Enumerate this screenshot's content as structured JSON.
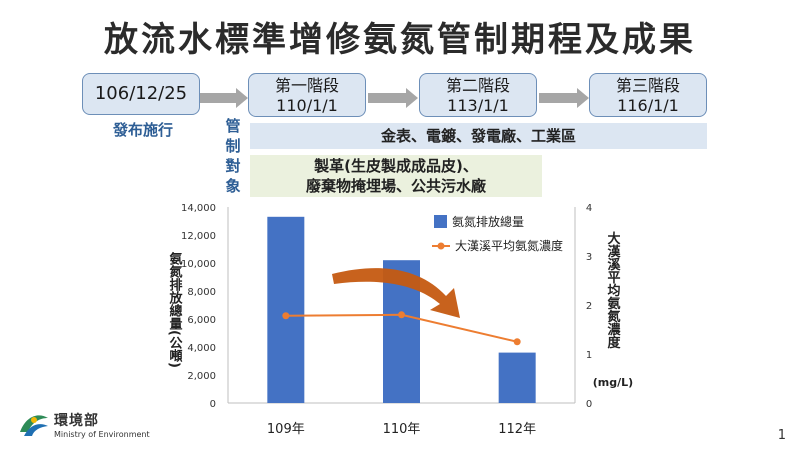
{
  "slide": {
    "title": "放流水標準增修氨氮管制期程及成果",
    "page_number": "1"
  },
  "timeline": {
    "start": {
      "date": "106/12/25",
      "caption": "發布施行"
    },
    "phases": [
      {
        "label": "第一階段",
        "date": "110/1/1"
      },
      {
        "label": "第二階段",
        "date": "113/1/1"
      },
      {
        "label": "第三階段",
        "date": "116/1/1"
      }
    ]
  },
  "control": {
    "label_chars": [
      "管",
      "制",
      "對",
      "象"
    ],
    "targets_blue": "金表、電鍍、發電廠、工業區",
    "targets_green_line1": "製革(生皮製成成品皮)、",
    "targets_green_line2": "廢棄物掩埋場、公共污水廠"
  },
  "logo": {
    "name": "環境部",
    "subtitle": "Ministry of Environment"
  },
  "colors": {
    "bar": "#4472c4",
    "line": "#ed7d31",
    "arrow": "#c55a11",
    "timeline_arrow": "#a6a6a6"
  },
  "chart_data": {
    "type": "bar",
    "categories": [
      "109年",
      "110年",
      "112年"
    ],
    "series": [
      {
        "name": "氨氮排放總量",
        "type": "bar",
        "axis": "left",
        "values": [
          13300,
          10200,
          3600
        ]
      },
      {
        "name": "大漢溪平均氨氮濃度",
        "type": "line",
        "axis": "right",
        "values": [
          1.78,
          1.8,
          1.25
        ]
      }
    ],
    "ylabel": "氨氮排放總量(公噸)",
    "y2label": "大漢溪平均氨氮濃度",
    "y2unit": "(mg/L)",
    "ylim": [
      0,
      14000
    ],
    "y2lim": [
      0,
      4
    ],
    "yticks": [
      "0",
      "2,000",
      "4,000",
      "6,000",
      "8,000",
      "10,000",
      "12,000",
      "14,000"
    ],
    "y2ticks": [
      "0",
      "1",
      "2",
      "3",
      "4"
    ],
    "legend_position": "top-right",
    "grid": false
  }
}
